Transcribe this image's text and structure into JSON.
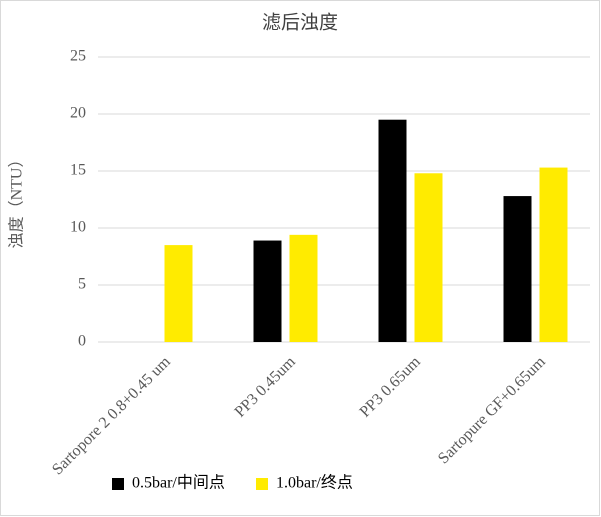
{
  "chart_data": {
    "type": "bar",
    "title": "滤后浊度",
    "y_label": "浊度（NTU）",
    "categories": [
      "Sartopore 2  0.8+0.45 um",
      "PP3 0.45um",
      "PP3 0.65um",
      "Sartopure GF+0.65um"
    ],
    "series": [
      {
        "name": "0.5bar/中间点",
        "color": "#000000",
        "values": [
          null,
          8.9,
          19.5,
          12.8
        ]
      },
      {
        "name": "1.0bar/终点",
        "color": "#ffeb00",
        "values": [
          8.5,
          9.4,
          14.8,
          15.3
        ]
      }
    ],
    "ylim": [
      0,
      25
    ],
    "yticks": [
      0,
      5,
      10,
      15,
      20,
      25
    ],
    "grid": true
  }
}
